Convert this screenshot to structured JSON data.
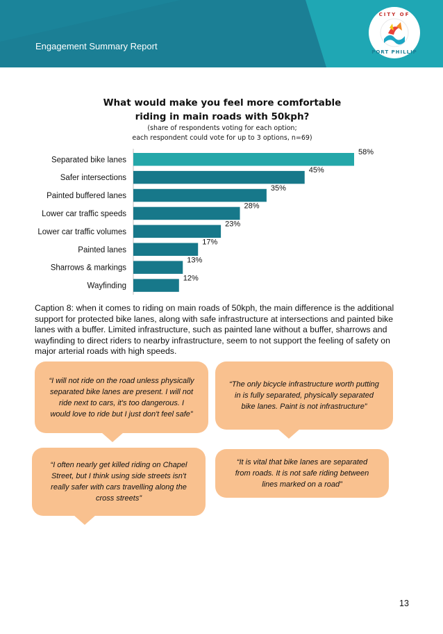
{
  "header": {
    "title": "Engagement Summary Report",
    "logo_top": "CITY OF",
    "logo_bottom": "PORT PHILLIP",
    "colors": {
      "teal_left": "#1b7f95",
      "teal_right": "#1fa7b4"
    }
  },
  "chart_data": {
    "type": "bar",
    "orientation": "horizontal",
    "title": "What would make you feel more comfortable riding in main roads with 50kph?",
    "title_lines": [
      "What would make you feel more comfortable",
      "riding in main roads with 50kph?"
    ],
    "subtitle_lines": [
      "(share of respondents voting for each option;",
      "each respondent could vote for up to 3 options, n=69)"
    ],
    "categories": [
      "Separated bike lanes",
      "Safer intersections",
      "Painted buffered lanes",
      "Lower car traffic speeds",
      "Lower car traffic volumes",
      "Painted lanes",
      "Sharrows & markings",
      "Wayfinding"
    ],
    "values": [
      58,
      45,
      35,
      28,
      23,
      17,
      13,
      12
    ],
    "value_labels": [
      "58%",
      "45%",
      "35%",
      "28%",
      "23%",
      "17%",
      "13%",
      "12%"
    ],
    "unit": "%",
    "xlim": [
      0,
      58
    ],
    "grid": false,
    "colors": {
      "highlight": "#24a7a9",
      "bar": "#17788a"
    }
  },
  "caption": "Caption 8: when it comes to riding on main roads of 50kph, the main difference is the additional support for protected bike lanes, along with safe infrastructure at intersections and painted bike lanes with a buffer. Limited infrastructure, such as painted lane without a buffer, sharrows and wayfinding to direct riders to nearby infrastructure, seem to not support the feeling of safety on major arterial roads with high speeds.",
  "quotes": [
    "“I will not ride on the road unless physically separated bike lanes are present. I will not ride next to cars, it's too dangerous. I would love to ride but I just don't feel safe”",
    "“The only bicycle infrastructure worth putting in is fully separated, physically separated bike lanes. Paint is not infrastructure”",
    "“I often nearly get killed riding on Chapel Street, but I think using side streets isn't really safer with cars travelling along the cross streets”",
    "“It is vital that bike lanes are separated from roads. It is not safe riding between lines marked on a road”"
  ],
  "page_number": "13"
}
